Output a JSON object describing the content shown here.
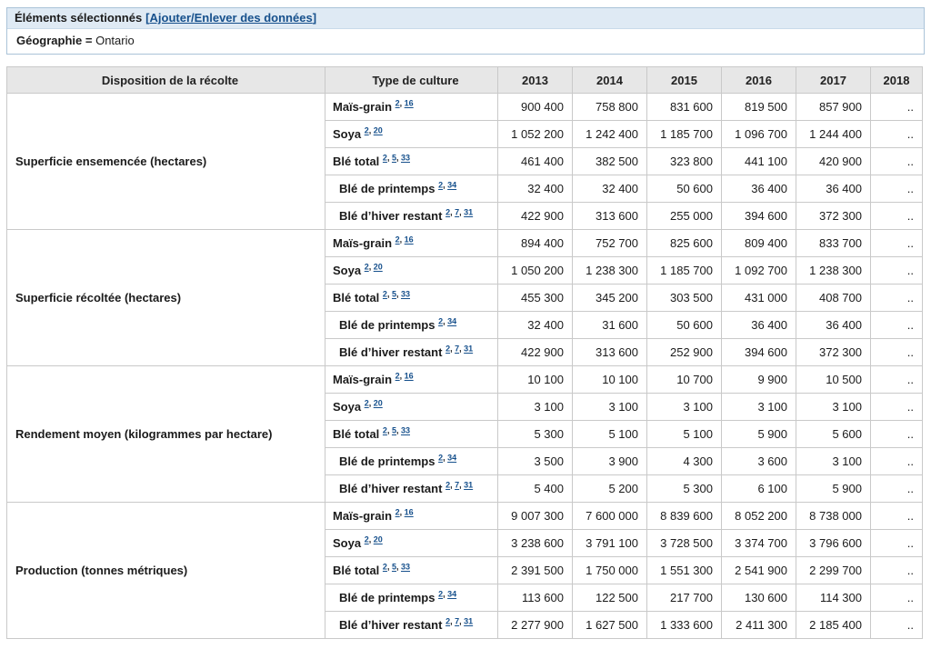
{
  "selection_bar": {
    "title": "Éléments sélectionnés",
    "link_prefix": "[",
    "link_text": "Ajouter/Enlever des données",
    "link_suffix": "]"
  },
  "filter": {
    "label": "Géographie",
    "operator": "=",
    "value": "Ontario"
  },
  "colors": {
    "link": "#16508c",
    "bar_background": "#dfeaf4",
    "bar_border": "#aac3d8",
    "table_header_background": "#e7e7e7",
    "grid": "#c9c9c9"
  },
  "table": {
    "headers": {
      "disposition": "Disposition de la récolte",
      "crop_type": "Type de culture",
      "years": [
        "2013",
        "2014",
        "2015",
        "2016",
        "2017",
        "2018"
      ]
    },
    "crops": [
      {
        "label": "Maïs-grain",
        "footnotes": [
          "2",
          "16"
        ],
        "indent": false
      },
      {
        "label": "Soya",
        "footnotes": [
          "2",
          "20"
        ],
        "indent": false
      },
      {
        "label": "Blé total",
        "footnotes": [
          "2",
          "5",
          "33"
        ],
        "indent": false
      },
      {
        "label": "Blé de printemps",
        "footnotes": [
          "2",
          "34"
        ],
        "indent": true
      },
      {
        "label": "Blé d’hiver restant",
        "footnotes": [
          "2",
          "7",
          "31"
        ],
        "indent": true
      }
    ],
    "groups": [
      {
        "label": "Superficie ensemencée (hectares)",
        "values": [
          [
            "900 400",
            "758 800",
            "831 600",
            "819 500",
            "857 900",
            ".."
          ],
          [
            "1 052 200",
            "1 242 400",
            "1 185 700",
            "1 096 700",
            "1 244 400",
            ".."
          ],
          [
            "461 400",
            "382 500",
            "323 800",
            "441 100",
            "420 900",
            ".."
          ],
          [
            "32 400",
            "32 400",
            "50 600",
            "36 400",
            "36 400",
            ".."
          ],
          [
            "422 900",
            "313 600",
            "255 000",
            "394 600",
            "372 300",
            ".."
          ]
        ]
      },
      {
        "label": "Superficie récoltée (hectares)",
        "values": [
          [
            "894 400",
            "752 700",
            "825 600",
            "809 400",
            "833 700",
            ".."
          ],
          [
            "1 050 200",
            "1 238 300",
            "1 185 700",
            "1 092 700",
            "1 238 300",
            ".."
          ],
          [
            "455 300",
            "345 200",
            "303 500",
            "431 000",
            "408 700",
            ".."
          ],
          [
            "32 400",
            "31 600",
            "50 600",
            "36 400",
            "36 400",
            ".."
          ],
          [
            "422 900",
            "313 600",
            "252 900",
            "394 600",
            "372 300",
            ".."
          ]
        ]
      },
      {
        "label": "Rendement moyen (kilogrammes par hectare)",
        "values": [
          [
            "10 100",
            "10 100",
            "10 700",
            "9 900",
            "10 500",
            ".."
          ],
          [
            "3 100",
            "3 100",
            "3 100",
            "3 100",
            "3 100",
            ".."
          ],
          [
            "5 300",
            "5 100",
            "5 100",
            "5 900",
            "5 600",
            ".."
          ],
          [
            "3 500",
            "3 900",
            "4 300",
            "3 600",
            "3 100",
            ".."
          ],
          [
            "5 400",
            "5 200",
            "5 300",
            "6 100",
            "5 900",
            ".."
          ]
        ]
      },
      {
        "label": "Production (tonnes métriques)",
        "values": [
          [
            "9 007 300",
            "7 600 000",
            "8 839 600",
            "8 052 200",
            "8 738 000",
            ".."
          ],
          [
            "3 238 600",
            "3 791 100",
            "3 728 500",
            "3 374 700",
            "3 796 600",
            ".."
          ],
          [
            "2 391 500",
            "1 750 000",
            "1 551 300",
            "2 541 900",
            "2 299 700",
            ".."
          ],
          [
            "113 600",
            "122 500",
            "217 700",
            "130 600",
            "114 300",
            ".."
          ],
          [
            "2 277 900",
            "1 627 500",
            "1 333 600",
            "2 411 300",
            "2 185 400",
            ".."
          ]
        ]
      }
    ]
  }
}
